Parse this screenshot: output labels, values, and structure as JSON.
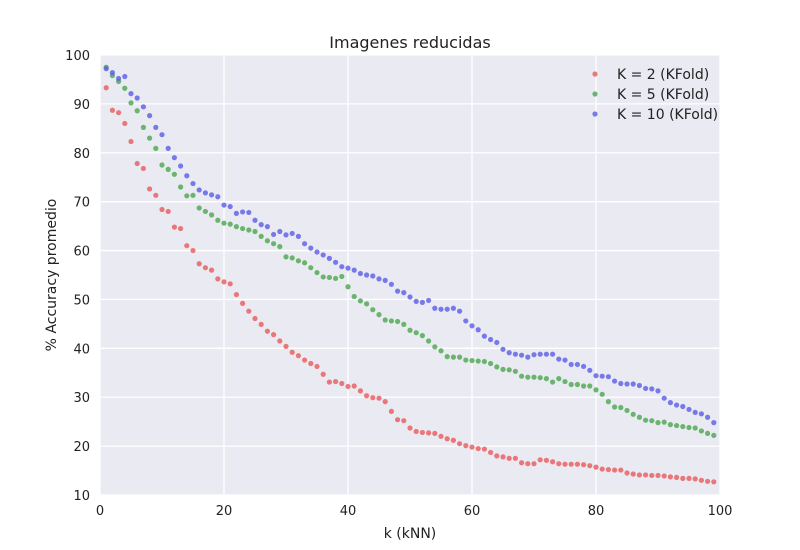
{
  "chart_data": {
    "type": "scatter",
    "title": "Imagenes reducidas",
    "xlabel": "k (kNN)",
    "ylabel": "% Accuracy promedio",
    "xlim": [
      0,
      100
    ],
    "ylim": [
      10,
      100
    ],
    "xticks": [
      "0",
      "20",
      "40",
      "60",
      "80",
      "100"
    ],
    "yticks": [
      "10",
      "20",
      "30",
      "40",
      "50",
      "60",
      "70",
      "80",
      "90",
      "100"
    ],
    "grid": true,
    "legend_position": "top-right",
    "series": [
      {
        "name": "K = 2 (KFold)",
        "color": "#e8595a",
        "x": [
          1,
          2,
          3,
          4,
          5,
          6,
          7,
          8,
          9,
          10,
          11,
          12,
          13,
          14,
          15,
          16,
          17,
          18,
          19,
          20,
          21,
          22,
          23,
          24,
          25,
          26,
          27,
          28,
          29,
          30,
          31,
          32,
          33,
          34,
          35,
          36,
          37,
          38,
          39,
          40,
          41,
          42,
          43,
          44,
          45,
          46,
          47,
          48,
          49,
          50,
          51,
          52,
          53,
          54,
          55,
          56,
          57,
          58,
          59,
          60,
          61,
          62,
          63,
          64,
          65,
          66,
          67,
          68,
          69,
          70,
          71,
          72,
          73,
          74,
          75,
          76,
          77,
          78,
          79,
          80,
          81,
          82,
          83,
          84,
          85,
          86,
          87,
          88,
          89,
          90,
          91,
          92,
          93,
          94,
          95,
          96,
          97,
          98,
          99
        ],
        "y": [
          93.3,
          88.7,
          88.2,
          86.0,
          82.3,
          77.8,
          76.8,
          72.6,
          71.3,
          68.4,
          68.0,
          64.8,
          64.5,
          61.0,
          60.0,
          57.3,
          56.5,
          56.0,
          54.2,
          53.6,
          53.2,
          51.0,
          49.2,
          47.6,
          46.1,
          44.9,
          43.5,
          42.8,
          41.5,
          40.4,
          39.2,
          38.5,
          37.6,
          36.9,
          36.3,
          34.7,
          33.1,
          33.2,
          32.8,
          32.2,
          32.3,
          31.3,
          30.3,
          29.9,
          29.8,
          29.1,
          27.1,
          25.4,
          25.2,
          23.7,
          23.0,
          22.8,
          22.7,
          22.6,
          22.0,
          21.5,
          21.2,
          20.5,
          20.1,
          19.8,
          19.5,
          19.4,
          18.7,
          18.0,
          17.8,
          17.5,
          17.5,
          16.6,
          16.4,
          16.4,
          17.2,
          17.1,
          16.8,
          16.4,
          16.3,
          16.3,
          16.3,
          16.2,
          16.0,
          15.7,
          15.3,
          15.2,
          15.1,
          15.1,
          14.5,
          14.3,
          14.1,
          14.1,
          14.0,
          14.0,
          13.9,
          13.7,
          13.6,
          13.4,
          13.4,
          13.3,
          13.0,
          12.8,
          12.7
        ]
      },
      {
        "name": "K = 5 (KFold)",
        "color": "#4aa64c",
        "x": [
          1,
          2,
          3,
          4,
          5,
          6,
          7,
          8,
          9,
          10,
          11,
          12,
          13,
          14,
          15,
          16,
          17,
          18,
          19,
          20,
          21,
          22,
          23,
          24,
          25,
          26,
          27,
          28,
          29,
          30,
          31,
          32,
          33,
          34,
          35,
          36,
          37,
          38,
          39,
          40,
          41,
          42,
          43,
          44,
          45,
          46,
          47,
          48,
          49,
          50,
          51,
          52,
          53,
          54,
          55,
          56,
          57,
          58,
          59,
          60,
          61,
          62,
          63,
          64,
          65,
          66,
          67,
          68,
          69,
          70,
          71,
          72,
          73,
          74,
          75,
          76,
          77,
          78,
          79,
          80,
          81,
          82,
          83,
          84,
          85,
          86,
          87,
          88,
          89,
          90,
          91,
          92,
          93,
          94,
          95,
          96,
          97,
          98,
          99
        ],
        "y": [
          97.5,
          95.8,
          94.6,
          93.2,
          90.2,
          88.6,
          85.2,
          83.0,
          80.9,
          77.5,
          76.6,
          75.6,
          73.0,
          71.2,
          71.3,
          68.7,
          68.0,
          67.3,
          66.2,
          65.6,
          65.4,
          64.9,
          64.5,
          64.2,
          63.9,
          62.9,
          62.0,
          61.4,
          60.8,
          58.7,
          58.5,
          57.9,
          57.5,
          56.5,
          55.5,
          54.6,
          54.5,
          54.3,
          54.7,
          52.6,
          50.6,
          49.7,
          49.1,
          47.9,
          46.9,
          45.8,
          45.6,
          45.5,
          44.9,
          43.7,
          43.2,
          42.6,
          41.5,
          40.3,
          39.5,
          38.3,
          38.2,
          38.2,
          37.6,
          37.5,
          37.4,
          37.3,
          36.9,
          36.2,
          35.7,
          35.6,
          35.3,
          34.3,
          34.1,
          34.1,
          34.0,
          33.8,
          33.1,
          33.8,
          33.2,
          32.6,
          32.6,
          32.3,
          32.3,
          31.5,
          30.6,
          29.1,
          28.0,
          27.9,
          27.3,
          26.5,
          25.9,
          25.3,
          25.2,
          24.8,
          24.9,
          24.4,
          24.2,
          24.0,
          23.8,
          23.7,
          23.1,
          22.6,
          22.2
        ]
      },
      {
        "name": "K = 10 (KFold)",
        "color": "#5a5ce6",
        "x": [
          1,
          2,
          3,
          4,
          5,
          6,
          7,
          8,
          9,
          10,
          11,
          12,
          13,
          14,
          15,
          16,
          17,
          18,
          19,
          20,
          21,
          22,
          23,
          24,
          25,
          26,
          27,
          28,
          29,
          30,
          31,
          32,
          33,
          34,
          35,
          36,
          37,
          38,
          39,
          40,
          41,
          42,
          43,
          44,
          45,
          46,
          47,
          48,
          49,
          50,
          51,
          52,
          53,
          54,
          55,
          56,
          57,
          58,
          59,
          60,
          61,
          62,
          63,
          64,
          65,
          66,
          67,
          68,
          69,
          70,
          71,
          72,
          73,
          74,
          75,
          76,
          77,
          78,
          79,
          80,
          81,
          82,
          83,
          84,
          85,
          86,
          87,
          88,
          89,
          90,
          91,
          92,
          93,
          94,
          95,
          96,
          97,
          98,
          99
        ],
        "y": [
          97.2,
          96.4,
          95.2,
          95.6,
          92.1,
          91.2,
          89.4,
          87.6,
          85.2,
          83.7,
          80.9,
          79.0,
          77.3,
          75.3,
          73.7,
          72.4,
          71.8,
          71.4,
          71.0,
          69.3,
          69.0,
          67.6,
          67.9,
          67.8,
          66.2,
          65.3,
          64.9,
          63.3,
          63.9,
          63.2,
          63.5,
          62.9,
          61.4,
          60.5,
          59.7,
          59.1,
          58.4,
          57.6,
          56.7,
          56.4,
          56.0,
          55.3,
          55.0,
          54.8,
          54.2,
          53.9,
          53.1,
          51.7,
          51.4,
          50.5,
          49.6,
          49.4,
          49.8,
          48.2,
          48.0,
          48.0,
          48.2,
          47.6,
          45.6,
          44.6,
          43.8,
          42.5,
          41.8,
          41.2,
          39.8,
          39.1,
          38.8,
          38.6,
          38.2,
          38.7,
          38.8,
          38.8,
          38.8,
          37.8,
          37.6,
          36.7,
          36.7,
          36.3,
          35.5,
          34.4,
          34.3,
          34.2,
          33.3,
          32.8,
          32.7,
          32.7,
          32.4,
          31.8,
          31.7,
          31.3,
          29.8,
          28.9,
          28.4,
          28.1,
          27.5,
          26.9,
          26.6,
          25.9,
          24.8
        ]
      }
    ]
  }
}
